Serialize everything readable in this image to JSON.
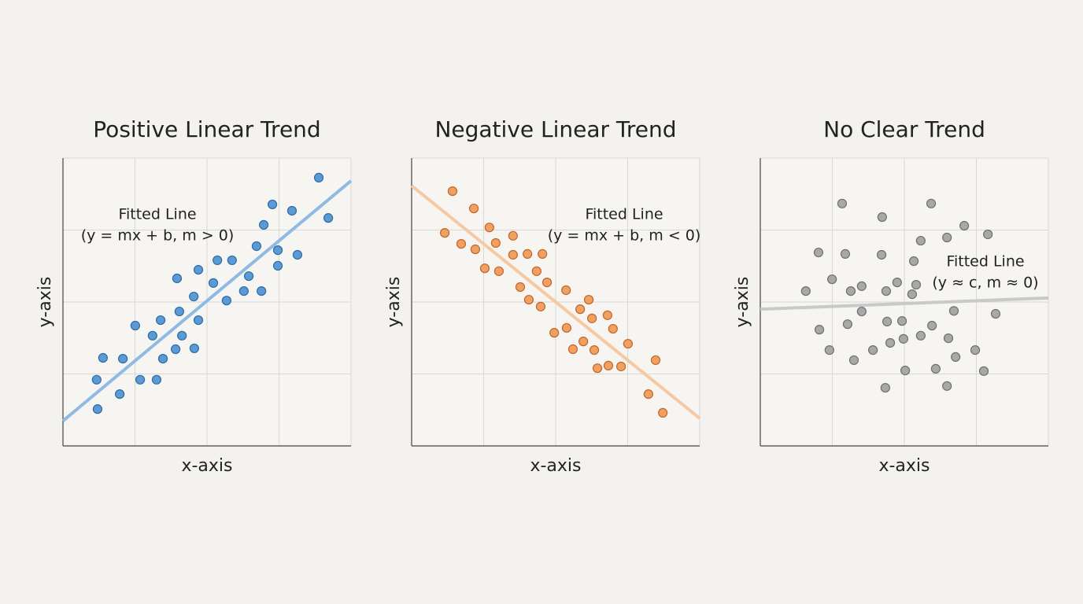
{
  "chart_data": [
    {
      "type": "scatter",
      "title": "Positive Linear Trend",
      "xlabel": "x-axis",
      "ylabel": "y-axis",
      "annotation": [
        "Fitted Line",
        "(y = mx + b, m > 0)"
      ],
      "color": "#5b9bd5",
      "edge_color": "#2e6aa6",
      "fit_color": "#8fbbe3",
      "xlim": [
        0,
        100
      ],
      "ylim": [
        0,
        100
      ],
      "xticks": [
        0,
        25,
        50,
        75,
        100
      ],
      "yticks": [
        0,
        25,
        50,
        75,
        100
      ],
      "grid": true,
      "x": [
        12.0,
        11.7,
        13.9,
        19.7,
        20.8,
        25.1,
        26.8,
        31.1,
        32.5,
        33.9,
        34.7,
        39.1,
        39.6,
        40.4,
        41.3,
        45.4,
        45.6,
        47.0,
        47.0,
        52.2,
        53.6,
        56.8,
        58.7,
        62.8,
        64.5,
        67.2,
        68.9,
        69.7,
        72.7,
        74.6,
        74.6,
        79.5,
        81.4,
        88.8,
        92.1
      ],
      "y": [
        12.8,
        23.0,
        30.6,
        18.0,
        30.3,
        41.8,
        23.0,
        38.3,
        23.0,
        43.7,
        30.3,
        33.6,
        58.2,
        46.7,
        38.3,
        51.9,
        33.9,
        43.7,
        61.2,
        56.6,
        64.5,
        50.5,
        64.5,
        53.8,
        59.0,
        69.4,
        53.8,
        76.8,
        83.9,
        68.0,
        62.6,
        81.7,
        66.4,
        93.2,
        79.2
      ],
      "fit_x": [
        0,
        100
      ],
      "fit_y": [
        8.7,
        92.1
      ]
    },
    {
      "type": "scatter",
      "title": "Negative Linear Trend",
      "xlabel": "x-axis",
      "ylabel": "y-axis",
      "annotation": [
        "Fitted Line",
        "(y = mx + b, m < 0)"
      ],
      "color": "#f0a060",
      "edge_color": "#c2652a",
      "fit_color": "#f5c9a3",
      "xlim": [
        0,
        100
      ],
      "ylim": [
        0,
        100
      ],
      "xticks": [
        0,
        25,
        50,
        75,
        100
      ],
      "yticks": [
        0,
        25,
        50,
        75,
        100
      ],
      "grid": true,
      "x": [
        14.2,
        11.5,
        17.2,
        21.6,
        22.1,
        25.4,
        27.0,
        29.2,
        30.3,
        35.2,
        35.2,
        37.7,
        40.2,
        40.7,
        43.4,
        44.8,
        45.4,
        47.0,
        49.5,
        53.6,
        53.8,
        56.0,
        58.5,
        59.6,
        61.5,
        62.6,
        63.4,
        64.5,
        68.0,
        68.3,
        69.9,
        72.7,
        75.1,
        82.2,
        84.7,
        87.2
      ],
      "y": [
        88.5,
        74.0,
        70.2,
        82.5,
        68.3,
        61.7,
        75.9,
        70.5,
        60.7,
        73.0,
        66.4,
        55.2,
        66.7,
        50.8,
        60.7,
        48.4,
        66.7,
        56.8,
        39.3,
        54.1,
        41.0,
        33.6,
        47.5,
        36.3,
        50.8,
        44.3,
        33.3,
        27.0,
        45.4,
        27.9,
        40.7,
        27.6,
        35.5,
        18.0,
        29.8,
        11.5
      ],
      "fit_x": [
        0,
        100
      ],
      "fit_y": [
        90.4,
        9.6
      ]
    },
    {
      "type": "scatter",
      "title": "No Clear Trend",
      "xlabel": "x-axis",
      "ylabel": "y-axis",
      "annotation": [
        "Fitted Line",
        "(y ≈ c, m ≈ 0)"
      ],
      "color": "#a8a8a8",
      "edge_color": "#6f6f6f",
      "fit_color": "#c9c9c9",
      "xlim": [
        0,
        100
      ],
      "ylim": [
        0,
        100
      ],
      "xticks": [
        0,
        25,
        50,
        75,
        100
      ],
      "yticks": [
        0,
        25,
        50,
        75,
        100
      ],
      "grid": true,
      "x": [
        28.4,
        42.3,
        59.3,
        70.8,
        79.0,
        55.7,
        64.8,
        20.2,
        29.5,
        42.1,
        53.3,
        24.9,
        35.2,
        47.5,
        54.1,
        15.8,
        31.4,
        43.7,
        52.7,
        35.2,
        67.2,
        81.7,
        20.5,
        30.3,
        44.0,
        49.2,
        59.6,
        55.7,
        49.7,
        45.1,
        65.3,
        24.0,
        39.1,
        74.6,
        32.5,
        67.8,
        50.3,
        60.9,
        77.6,
        43.4,
        64.8
      ],
      "y": [
        84.2,
        79.5,
        84.2,
        76.5,
        73.5,
        71.3,
        72.4,
        67.2,
        66.7,
        66.4,
        64.2,
        57.9,
        55.5,
        56.8,
        56.0,
        53.8,
        53.8,
        53.8,
        52.7,
        46.7,
        46.9,
        45.9,
        40.4,
        42.3,
        43.2,
        43.4,
        41.8,
        38.3,
        37.2,
        35.8,
        37.4,
        33.3,
        33.3,
        33.3,
        29.8,
        30.9,
        26.2,
        26.8,
        26.0,
        20.2,
        20.8
      ],
      "fit_x": [
        0,
        100
      ],
      "fit_y": [
        47.5,
        51.4
      ]
    }
  ]
}
